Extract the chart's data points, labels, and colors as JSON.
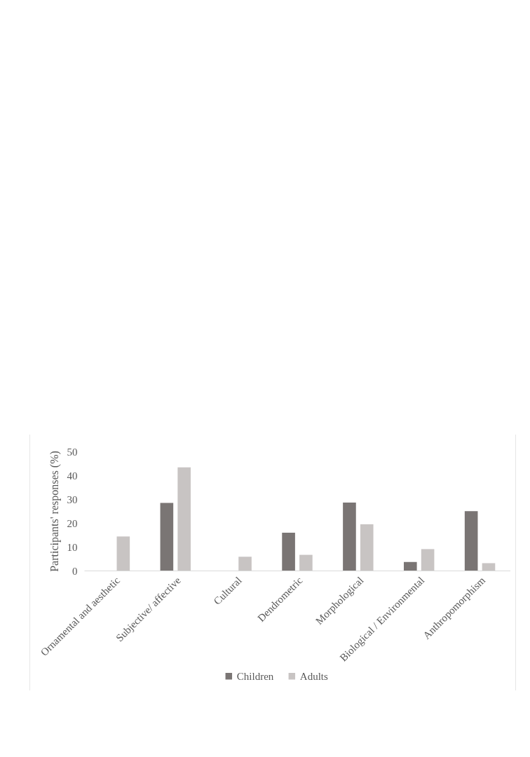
{
  "chart_data": {
    "type": "bar",
    "ylabel": "Participants' responses (%)",
    "categories": [
      "Ornamental and aesthetic",
      "Subjective/ affective",
      "Cultural",
      "Dendrometric",
      "Morphological",
      "Biological / Environmental",
      "Anthropomorphism"
    ],
    "series": [
      {
        "name": "Children",
        "color": "#7a7574",
        "values": [
          0,
          28.4,
          0,
          15.9,
          28.5,
          3.6,
          24.9
        ]
      },
      {
        "name": "Adults",
        "color": "#c8c4c3",
        "values": [
          14.3,
          43.3,
          5.8,
          6.6,
          19.4,
          9.0,
          3.1
        ]
      }
    ],
    "ylim": [
      0,
      50
    ],
    "yticks": [
      0,
      10,
      20,
      30,
      40,
      50
    ],
    "legend": "bottom"
  }
}
